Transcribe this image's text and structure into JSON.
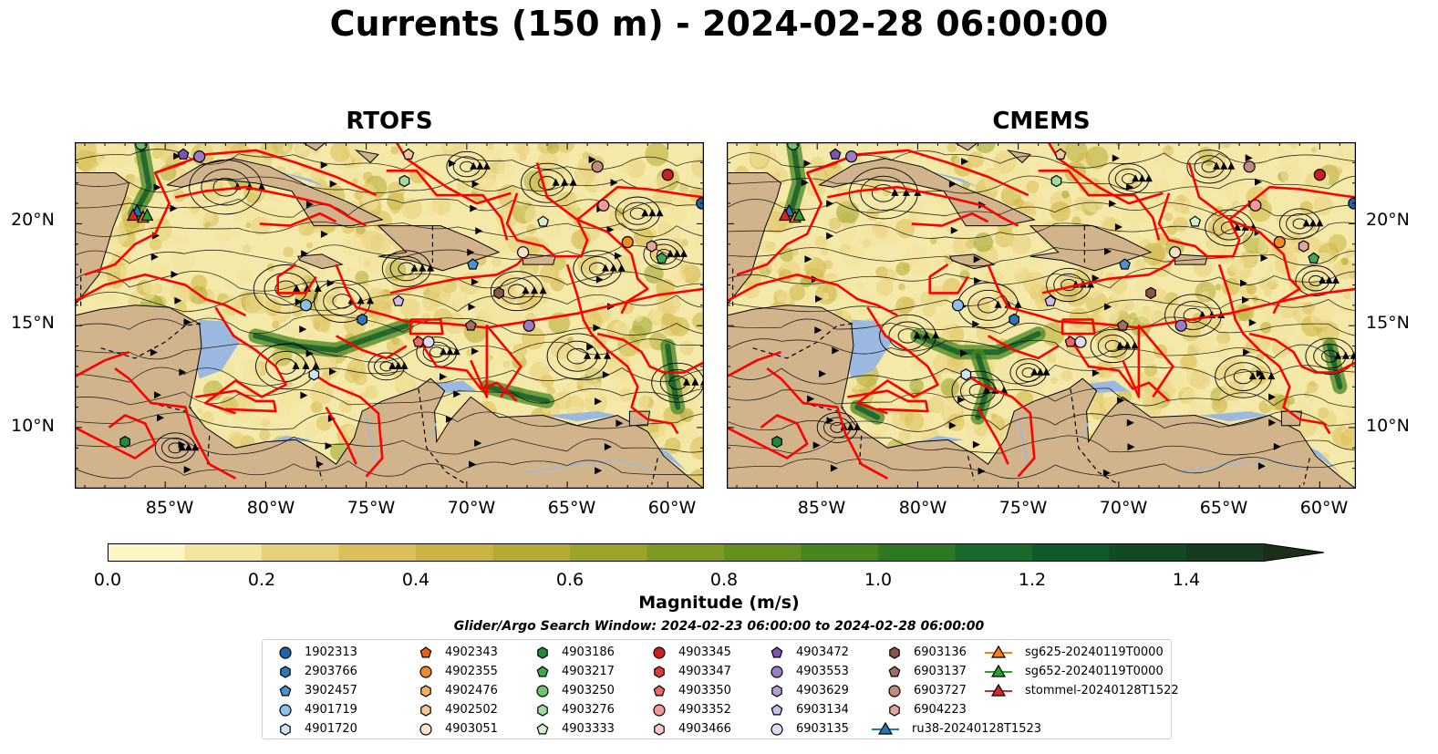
{
  "title": "Currents (150 m) - 2024-02-28 06:00:00",
  "panels": [
    {
      "title": "RTOFS"
    },
    {
      "title": "CMEMS"
    }
  ],
  "lat_labels": [
    "20°N",
    "15°N",
    "10°N"
  ],
  "lon_labels": [
    "85°W",
    "80°W",
    "75°W",
    "70°W",
    "65°W",
    "60°W"
  ],
  "colorbar": {
    "label": "Magnitude (m/s)",
    "ticks": [
      "0.0",
      "0.2",
      "0.4",
      "0.6",
      "0.8",
      "1.0",
      "1.2",
      "1.4"
    ],
    "min": 0,
    "max": 1.5,
    "extend": "max",
    "colors": [
      "#fcf5c4",
      "#f3e49f",
      "#e7d07c",
      "#dbbf5a",
      "#ccb444",
      "#b5ab34",
      "#9ba42a",
      "#7f9a22",
      "#63901f",
      "#478520",
      "#2e7822",
      "#176a2a",
      "#0f5a2b",
      "#124a25",
      "#163b20",
      "#1a2e1a"
    ]
  },
  "search_window": "Glider/Argo Search Window: 2024-02-23 06:00:00 to 2024-02-28 06:00:00",
  "legend": [
    {
      "label": "1902313",
      "marker": "circle",
      "color": "#1f63a8"
    },
    {
      "label": "2903766",
      "marker": "hexagon",
      "color": "#2f78b8"
    },
    {
      "label": "3902457",
      "marker": "pentagon",
      "color": "#4b93cf"
    },
    {
      "label": "4901719",
      "marker": "circle",
      "color": "#8dc0e6"
    },
    {
      "label": "4901720",
      "marker": "hexagon",
      "color": "#cde4f5"
    },
    {
      "label": "4902343",
      "marker": "pentagon",
      "color": "#e8620e"
    },
    {
      "label": "4902355",
      "marker": "circle",
      "color": "#f28a2a"
    },
    {
      "label": "4902476",
      "marker": "hexagon",
      "color": "#f6ad65"
    },
    {
      "label": "4902502",
      "marker": "hexagon",
      "color": "#f8c796"
    },
    {
      "label": "4903051",
      "marker": "circle",
      "color": "#fde0c6"
    },
    {
      "label": "4903186",
      "marker": "hexagon",
      "color": "#218a3a"
    },
    {
      "label": "4903217",
      "marker": "pentagon",
      "color": "#40a852"
    },
    {
      "label": "4903250",
      "marker": "circle",
      "color": "#6cc46e"
    },
    {
      "label": "4903276",
      "marker": "hexagon",
      "color": "#a1dba0"
    },
    {
      "label": "4903333",
      "marker": "pentagon",
      "color": "#d2f0cc"
    },
    {
      "label": "4903345",
      "marker": "circle",
      "color": "#cc1f24"
    },
    {
      "label": "4903347",
      "marker": "hexagon",
      "color": "#de3d3b"
    },
    {
      "label": "4903350",
      "marker": "pentagon",
      "color": "#ec6a66"
    },
    {
      "label": "4903352",
      "marker": "circle",
      "color": "#f49a96"
    },
    {
      "label": "4903466",
      "marker": "hexagon",
      "color": "#fbc9c5"
    },
    {
      "label": "4903472",
      "marker": "pentagon",
      "color": "#7b55b3"
    },
    {
      "label": "4903553",
      "marker": "circle",
      "color": "#9b7bc6"
    },
    {
      "label": "4903629",
      "marker": "hexagon",
      "color": "#b49cd6"
    },
    {
      "label": "6903134",
      "marker": "pentagon",
      "color": "#cdbde6"
    },
    {
      "label": "6903135",
      "marker": "circle",
      "color": "#e3d9f2"
    },
    {
      "label": "6903136",
      "marker": "hexagon",
      "color": "#8b5448"
    },
    {
      "label": "6903137",
      "marker": "pentagon",
      "color": "#a36e60"
    },
    {
      "label": "6903727",
      "marker": "circle",
      "color": "#c08a7c"
    },
    {
      "label": "6904223",
      "marker": "hexagon",
      "color": "#e1a79c"
    },
    {
      "label": "ru38-20240128T1523",
      "marker": "triangle-line",
      "color": "#1f77b4"
    },
    {
      "label": "sg625-20240119T0000",
      "marker": "triangle-line",
      "color": "#ff7f0e"
    },
    {
      "label": "sg652-20240119T0000",
      "marker": "triangle-line",
      "color": "#2ca02c"
    },
    {
      "label": "stommel-20240128T1522",
      "marker": "triangle-line",
      "color": "#d62728"
    }
  ],
  "map": {
    "lon_range": [
      -89.5,
      -58.2
    ],
    "lat_range": [
      7.0,
      24.0
    ],
    "ocean_color": "#f4e9a8",
    "land_color": "#d2b48c",
    "shallow_color": "#9bb8e0",
    "boundary_color": "#ff0000"
  },
  "markers": [
    {
      "lon": -86.2,
      "lat": 23.9,
      "marker": "circle",
      "color": "#6cc46e"
    },
    {
      "lon": -84.1,
      "lat": 23.4,
      "marker": "pentagon",
      "color": "#7b55b3"
    },
    {
      "lon": -83.3,
      "lat": 23.3,
      "marker": "circle",
      "color": "#9b7bc6"
    },
    {
      "lon": -72.9,
      "lat": 23.4,
      "marker": "pentagon",
      "color": "#f8c796"
    },
    {
      "lon": -63.5,
      "lat": 22.8,
      "marker": "circle",
      "color": "#c08a7c"
    },
    {
      "lon": -60.0,
      "lat": 22.4,
      "marker": "circle",
      "color": "#cc1f24"
    },
    {
      "lon": -73.1,
      "lat": 22.1,
      "marker": "hexagon",
      "color": "#a1dba0"
    },
    {
      "lon": -63.2,
      "lat": 20.9,
      "marker": "circle",
      "color": "#f49a96"
    },
    {
      "lon": -58.3,
      "lat": 21.0,
      "marker": "circle",
      "color": "#1f63a8"
    },
    {
      "lon": -66.2,
      "lat": 20.1,
      "marker": "pentagon",
      "color": "#d2f0cc"
    },
    {
      "lon": -62.0,
      "lat": 19.1,
      "marker": "circle",
      "color": "#f28a2a"
    },
    {
      "lon": -60.8,
      "lat": 18.9,
      "marker": "hexagon",
      "color": "#e1a79c"
    },
    {
      "lon": -60.3,
      "lat": 18.3,
      "marker": "pentagon",
      "color": "#40a852"
    },
    {
      "lon": -67.2,
      "lat": 18.6,
      "marker": "circle",
      "color": "#fde0c6"
    },
    {
      "lon": -69.7,
      "lat": 18.0,
      "marker": "pentagon",
      "color": "#4b93cf"
    },
    {
      "lon": -68.4,
      "lat": 16.6,
      "marker": "hexagon",
      "color": "#8b5448"
    },
    {
      "lon": -73.4,
      "lat": 16.2,
      "marker": "pentagon",
      "color": "#cdbde6"
    },
    {
      "lon": -78.0,
      "lat": 16.0,
      "marker": "circle",
      "color": "#8dc0e6"
    },
    {
      "lon": -75.2,
      "lat": 15.3,
      "marker": "hexagon",
      "color": "#2f78b8"
    },
    {
      "lon": -69.8,
      "lat": 15.0,
      "marker": "pentagon",
      "color": "#a36e60"
    },
    {
      "lon": -66.9,
      "lat": 15.0,
      "marker": "circle",
      "color": "#9b7bc6"
    },
    {
      "lon": -72.4,
      "lat": 14.2,
      "marker": "pentagon",
      "color": "#ec6a66"
    },
    {
      "lon": -71.9,
      "lat": 14.2,
      "marker": "circle",
      "color": "#e3d9f2"
    },
    {
      "lon": -77.6,
      "lat": 12.6,
      "marker": "hexagon",
      "color": "#cde4f5"
    },
    {
      "lon": -87.0,
      "lat": 9.3,
      "marker": "hexagon",
      "color": "#218a3a"
    },
    {
      "lon": -86.4,
      "lat": 20.6,
      "marker": "triangle",
      "color": "#1f77b4"
    },
    {
      "lon": -86.1,
      "lat": 20.3,
      "marker": "triangle",
      "color": "#ff7f0e"
    },
    {
      "lon": -85.9,
      "lat": 20.4,
      "marker": "triangle",
      "color": "#2ca02c"
    },
    {
      "lon": -86.6,
      "lat": 20.4,
      "marker": "triangle",
      "color": "#d62728"
    }
  ]
}
